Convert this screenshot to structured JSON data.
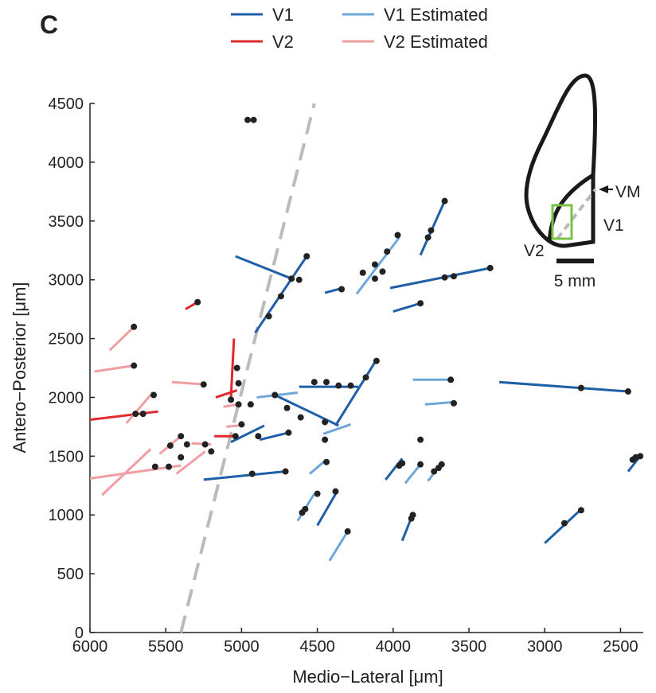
{
  "chart_data": {
    "type": "segments",
    "panel_label": "C",
    "x_label": "Medio−Lateral [μm]",
    "y_label": "Antero−Posterior [μm]",
    "xlim": [
      6000,
      2350
    ],
    "ylim": [
      0,
      4500
    ],
    "xticks": [
      6000,
      5500,
      5000,
      4500,
      4000,
      3500,
      3000,
      2500
    ],
    "yticks": [
      0,
      500,
      1000,
      1500,
      2000,
      2500,
      3000,
      3500,
      4000,
      4500
    ],
    "series": [
      {
        "name": "V1",
        "color": "#1f5fa8",
        "segments": [
          {
            "x": [
              5040,
              4670
            ],
            "y": [
              3200,
              3010
            ]
          },
          {
            "x": [
              4910,
              4570
            ],
            "y": [
              2550,
              3200
            ]
          },
          {
            "x": [
              4020,
              3360
            ],
            "y": [
              2930,
              3100
            ]
          },
          {
            "x": [
              3820,
              3660
            ],
            "y": [
              3210,
              3670
            ]
          },
          {
            "x": [
              4450,
              4330
            ],
            "y": [
              2890,
              2930
            ]
          },
          {
            "x": [
              4000,
              3820
            ],
            "y": [
              2730,
              2800
            ]
          },
          {
            "x": [
              3300,
              2450
            ],
            "y": [
              2130,
              2050
            ]
          },
          {
            "x": [
              4620,
              4230
            ],
            "y": [
              2090,
              2090
            ]
          },
          {
            "x": [
              4380,
              4110
            ],
            "y": [
              1760,
              2320
            ]
          },
          {
            "x": [
              4780,
              4360
            ],
            "y": [
              2020,
              1760
            ]
          },
          {
            "x": [
              5070,
              4850
            ],
            "y": [
              1620,
              1760
            ]
          },
          {
            "x": [
              4880,
              4690
            ],
            "y": [
              1640,
              1700
            ]
          },
          {
            "x": [
              5250,
              4710
            ],
            "y": [
              1300,
              1370
            ]
          },
          {
            "x": [
              4500,
              4370
            ],
            "y": [
              910,
              1200
            ]
          },
          {
            "x": [
              4050,
              3940
            ],
            "y": [
              1300,
              1480
            ]
          },
          {
            "x": [
              3940,
              3870
            ],
            "y": [
              780,
              1010
            ]
          },
          {
            "x": [
              3000,
              2750
            ],
            "y": [
              760,
              1060
            ]
          },
          {
            "x": [
              2450,
              2370
            ],
            "y": [
              1370,
              1500
            ]
          }
        ]
      },
      {
        "name": "V2",
        "color": "#e0282e",
        "segments": [
          {
            "x": [
              6000,
              5550
            ],
            "y": [
              1810,
              1880
            ]
          },
          {
            "x": [
              5370,
              5290
            ],
            "y": [
              2750,
              2810
            ]
          },
          {
            "x": [
              5050,
              5070
            ],
            "y": [
              2500,
              2000
            ]
          },
          {
            "x": [
              5170,
              5030
            ],
            "y": [
              2000,
              2060
            ]
          },
          {
            "x": [
              5180,
              5030
            ],
            "y": [
              1670,
              1670
            ]
          },
          {
            "x": [
              4970,
              4920
            ],
            "y": [
              4360,
              4360
            ]
          }
        ]
      },
      {
        "name": "V1 Estimated",
        "color": "#6fa6d9",
        "segments": [
          {
            "x": [
              4240,
              3960
            ],
            "y": [
              2880,
              3360
            ]
          },
          {
            "x": [
              4900,
              4630
            ],
            "y": [
              2000,
              2040
            ]
          },
          {
            "x": [
              4460,
              4280
            ],
            "y": [
              1690,
              1770
            ]
          },
          {
            "x": [
              3870,
              3600
            ],
            "y": [
              2150,
              2150
            ]
          },
          {
            "x": [
              3790,
              3600
            ],
            "y": [
              1940,
              1960
            ]
          },
          {
            "x": [
              4630,
              4520
            ],
            "y": [
              950,
              1180
            ]
          },
          {
            "x": [
              4550,
              4450
            ],
            "y": [
              1350,
              1460
            ]
          },
          {
            "x": [
              4420,
              4300
            ],
            "y": [
              610,
              860
            ]
          },
          {
            "x": [
              3920,
              3820
            ],
            "y": [
              1270,
              1430
            ]
          },
          {
            "x": [
              3770,
              3680
            ],
            "y": [
              1290,
              1440
            ]
          }
        ]
      },
      {
        "name": "V2 Estimated",
        "color": "#f19ea2",
        "segments": [
          {
            "x": [
              5870,
              5710
            ],
            "y": [
              2400,
              2600
            ]
          },
          {
            "x": [
              5970,
              5710
            ],
            "y": [
              2220,
              2270
            ]
          },
          {
            "x": [
              6000,
              5400
            ],
            "y": [
              1310,
              1420
            ]
          },
          {
            "x": [
              5920,
              5600
            ],
            "y": [
              1170,
              1560
            ]
          },
          {
            "x": [
              5760,
              5600
            ],
            "y": [
              1780,
              2020
            ]
          },
          {
            "x": [
              5460,
              5240
            ],
            "y": [
              2130,
              2110
            ]
          },
          {
            "x": [
              5430,
              5240
            ],
            "y": [
              1350,
              1540
            ]
          },
          {
            "x": [
              5540,
              5400
            ],
            "y": [
              1520,
              1670
            ]
          },
          {
            "x": [
              5330,
              5200
            ],
            "y": [
              1610,
              1600
            ]
          },
          {
            "x": [
              5100,
              5020
            ],
            "y": [
              1750,
              1760
            ]
          },
          {
            "x": [
              5120,
              5020
            ],
            "y": [
              1920,
              1940
            ]
          }
        ]
      }
    ],
    "points": {
      "color": "#222222",
      "x": [
        4960,
        4920,
        5290,
        5710,
        5710,
        4570,
        4670,
        4620,
        4740,
        4820,
        4340,
        3970,
        4040,
        4120,
        4200,
        4070,
        4120,
        3660,
        3750,
        3770,
        3660,
        3600,
        3360,
        3820,
        5030,
        5020,
        5070,
        5020,
        5250,
        5580,
        5650,
        5700,
        4940,
        4780,
        4700,
        4610,
        4450,
        4520,
        4440,
        4360,
        4280,
        4180,
        4110,
        3620,
        3600,
        2760,
        2450,
        5000,
        5040,
        4890,
        4690,
        5400,
        5470,
        5360,
        5240,
        5200,
        5570,
        5480,
        5400,
        4930,
        4710,
        4450,
        4440,
        4380,
        4500,
        4580,
        4600,
        4300,
        3820,
        3820,
        3940,
        3960,
        3680,
        3700,
        3730,
        3870,
        3880,
        2870,
        2760,
        2420,
        2370,
        2400
      ],
      "y": [
        4360,
        4360,
        2810,
        2600,
        2270,
        3200,
        3010,
        3000,
        2860,
        2690,
        2920,
        3380,
        3240,
        3130,
        3060,
        3070,
        3010,
        3670,
        3420,
        3360,
        3020,
        3030,
        3100,
        2800,
        2250,
        2120,
        1980,
        1940,
        2110,
        2020,
        1860,
        1860,
        1940,
        2020,
        1910,
        1830,
        1790,
        2130,
        2130,
        2100,
        2100,
        2170,
        2310,
        2150,
        1950,
        2080,
        2050,
        1770,
        1670,
        1670,
        1700,
        1670,
        1590,
        1600,
        1600,
        1540,
        1410,
        1410,
        1490,
        1350,
        1370,
        1640,
        1450,
        1200,
        1180,
        1050,
        1020,
        860,
        1640,
        1430,
        1440,
        1420,
        1430,
        1400,
        1370,
        1000,
        970,
        930,
        1040,
        1470,
        1500,
        1490
      ]
    },
    "reference_line": {
      "color": "#bbbbbb",
      "x": [
        5400,
        4520
      ],
      "y": [
        0,
        4500
      ]
    },
    "annotations": [
      "VM",
      "V1",
      "V2",
      "5 mm"
    ]
  }
}
